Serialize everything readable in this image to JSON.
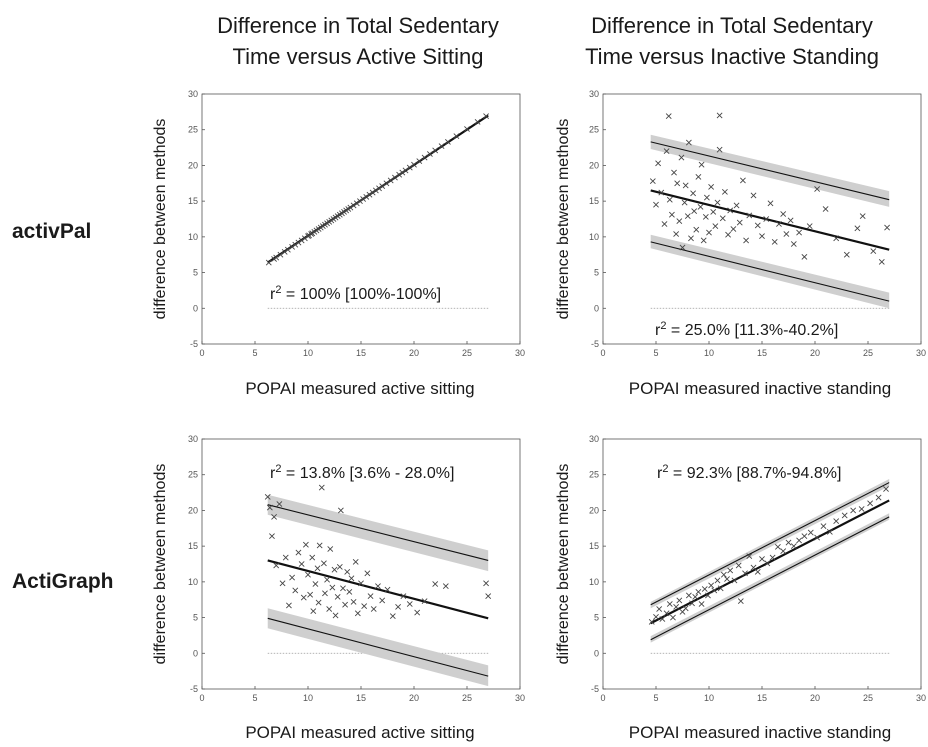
{
  "titles": {
    "left_line1": "Difference in Total Sedentary",
    "left_line2": "Time versus Active Sitting",
    "right_line1": "Difference in Total Sedentary",
    "right_line2": "Time versus Inactive Standing"
  },
  "row_labels": {
    "top": "activPal",
    "bottom": "ActiGraph"
  },
  "colors": {
    "points": "#444444",
    "band": "#cfcfcf",
    "line": "#111111",
    "zero": "#9a9a9a",
    "axis": "#555555"
  },
  "chart_data": [
    {
      "type": "scatter",
      "xlabel": "POPAI measured active sitting",
      "ylabel": "difference between methods",
      "annotation": {
        "base": "r",
        "sup": "2",
        "rest": " = 100% [100%-100%]"
      },
      "xlim": [
        0,
        30
      ],
      "ylim": [
        -5,
        30
      ],
      "xticks": [
        0,
        5,
        10,
        15,
        20,
        25,
        30
      ],
      "yticks": [
        -5,
        0,
        5,
        10,
        15,
        20,
        25,
        30
      ],
      "zero_line": {
        "x": [
          6.2,
          27
        ]
      },
      "bands": [],
      "lines": [
        {
          "x": [
            6.2,
            27
          ],
          "y": [
            6.4,
            27
          ],
          "width": 2.2
        }
      ],
      "points": {
        "x": [
          6.3,
          6.8,
          7.0,
          7.4,
          7.8,
          8.1,
          8.5,
          8.8,
          9.1,
          9.4,
          9.7,
          10.0,
          10.1,
          10.3,
          10.4,
          10.6,
          10.8,
          11.0,
          11.2,
          11.4,
          11.6,
          11.8,
          12.0,
          12.2,
          12.4,
          12.6,
          12.8,
          13.0,
          13.2,
          13.4,
          13.6,
          13.8,
          14.0,
          14.3,
          14.6,
          14.9,
          15.2,
          15.5,
          15.8,
          16.1,
          16.4,
          16.7,
          17.0,
          17.4,
          17.8,
          18.2,
          18.6,
          18.9,
          19.2,
          19.6,
          20.0,
          20.5,
          21.0,
          21.5,
          22.0,
          22.6,
          23.2,
          24.0,
          25.0,
          26.0,
          26.8
        ],
        "y": [
          6.4,
          6.9,
          7.1,
          7.5,
          7.9,
          8.2,
          8.6,
          8.9,
          9.2,
          9.5,
          9.8,
          10.1,
          10.2,
          10.4,
          10.5,
          10.7,
          10.9,
          11.1,
          11.3,
          11.5,
          11.7,
          11.9,
          12.1,
          12.3,
          12.5,
          12.7,
          12.9,
          13.1,
          13.3,
          13.5,
          13.7,
          13.9,
          14.1,
          14.4,
          14.7,
          15.0,
          15.3,
          15.6,
          15.9,
          16.2,
          16.5,
          16.8,
          17.1,
          17.5,
          17.9,
          18.3,
          18.7,
          19.0,
          19.3,
          19.7,
          20.1,
          20.6,
          21.1,
          21.6,
          22.1,
          22.7,
          23.3,
          24.1,
          25.1,
          26.1,
          26.9
        ]
      }
    },
    {
      "type": "scatter",
      "xlabel": "POPAI measured inactive standing",
      "ylabel": "difference between methods",
      "annotation": {
        "base": "r",
        "sup": "2",
        "rest": " = 25.0% [11.3%-40.2%]"
      },
      "xlim": [
        0,
        30
      ],
      "ylim": [
        -5,
        30
      ],
      "xticks": [
        0,
        5,
        10,
        15,
        20,
        25,
        30
      ],
      "yticks": [
        -5,
        0,
        5,
        10,
        15,
        20,
        25,
        30
      ],
      "zero_line": {
        "x": [
          4.5,
          27
        ]
      },
      "bands": [
        {
          "x": [
            4.5,
            27
          ],
          "y_lo": [
            22.3,
            14.2
          ],
          "y_hi": [
            24.3,
            16.4
          ]
        },
        {
          "x": [
            4.5,
            27
          ],
          "y_lo": [
            8.4,
            0.0
          ],
          "y_hi": [
            10.3,
            2.2
          ]
        }
      ],
      "lines": [
        {
          "x": [
            4.5,
            27
          ],
          "y": [
            23.3,
            15.2
          ],
          "width": 1.1
        },
        {
          "x": [
            4.5,
            27
          ],
          "y": [
            16.5,
            8.2
          ],
          "width": 2.2
        },
        {
          "x": [
            4.5,
            27
          ],
          "y": [
            9.3,
            1.0
          ],
          "width": 1.1
        }
      ],
      "points": {
        "x": [
          4.7,
          5.0,
          5.2,
          5.5,
          5.8,
          6.0,
          6.2,
          6.3,
          6.5,
          6.7,
          6.9,
          7.0,
          7.2,
          7.4,
          7.5,
          7.7,
          7.8,
          8.0,
          8.1,
          8.3,
          8.5,
          8.6,
          8.8,
          9.0,
          9.2,
          9.3,
          9.5,
          9.7,
          9.8,
          10.0,
          10.2,
          10.4,
          10.6,
          10.8,
          11.0,
          11.0,
          11.3,
          11.5,
          11.8,
          12.0,
          12.3,
          12.6,
          12.9,
          13.2,
          13.5,
          13.8,
          14.2,
          14.6,
          15.0,
          15.4,
          15.8,
          16.2,
          16.6,
          17.0,
          17.3,
          17.7,
          18.0,
          18.5,
          19.0,
          19.5,
          20.2,
          21.0,
          22.0,
          23.0,
          24.0,
          24.5,
          25.5,
          26.3,
          26.8
        ],
        "y": [
          17.8,
          14.5,
          20.3,
          16.2,
          11.8,
          22.0,
          26.9,
          15.2,
          13.1,
          19.0,
          10.4,
          17.5,
          12.2,
          21.1,
          8.5,
          14.8,
          17.2,
          12.9,
          23.2,
          9.8,
          16.1,
          13.6,
          11.0,
          18.4,
          14.2,
          20.1,
          9.5,
          12.8,
          15.5,
          10.6,
          17.0,
          13.5,
          11.5,
          14.8,
          27.0,
          22.2,
          12.6,
          16.3,
          10.3,
          13.7,
          11.1,
          14.4,
          12.0,
          17.9,
          9.5,
          13.0,
          15.8,
          11.6,
          10.1,
          12.5,
          14.7,
          9.3,
          11.8,
          13.2,
          10.4,
          12.3,
          9.0,
          10.6,
          7.2,
          11.5,
          16.7,
          13.9,
          9.8,
          7.5,
          11.2,
          12.9,
          8.0,
          6.5,
          11.3
        ]
      }
    },
    {
      "type": "scatter",
      "xlabel": "POPAI measured active sitting",
      "ylabel": "difference between methods",
      "annotation": {
        "base": "r",
        "sup": "2",
        "rest": " = 13.8% [3.6% - 28.0%]"
      },
      "xlim": [
        0,
        30
      ],
      "ylim": [
        -5,
        30
      ],
      "xticks": [
        0,
        5,
        10,
        15,
        20,
        25,
        30
      ],
      "yticks": [
        -5,
        0,
        5,
        10,
        15,
        20,
        25,
        30
      ],
      "zero_line": {
        "x": [
          6.2,
          27
        ]
      },
      "bands": [
        {
          "x": [
            6.2,
            27
          ],
          "y_lo": [
            19.4,
            11.5
          ],
          "y_hi": [
            22.2,
            14.4
          ]
        },
        {
          "x": [
            6.2,
            27
          ],
          "y_lo": [
            3.5,
            -4.6
          ],
          "y_hi": [
            6.3,
            -1.7
          ]
        }
      ],
      "lines": [
        {
          "x": [
            6.2,
            27
          ],
          "y": [
            20.8,
            13.0
          ],
          "width": 1.1
        },
        {
          "x": [
            6.2,
            27
          ],
          "y": [
            13.0,
            4.9
          ],
          "width": 2.2
        },
        {
          "x": [
            6.2,
            27
          ],
          "y": [
            4.9,
            -3.2
          ],
          "width": 1.1
        }
      ],
      "points": {
        "x": [
          6.2,
          6.4,
          6.6,
          6.8,
          7.0,
          7.3,
          7.6,
          7.9,
          8.2,
          8.5,
          8.8,
          9.1,
          9.4,
          9.6,
          9.8,
          10.0,
          10.2,
          10.4,
          10.5,
          10.7,
          10.9,
          11.0,
          11.1,
          11.3,
          11.5,
          11.6,
          11.8,
          12.0,
          12.1,
          12.3,
          12.5,
          12.6,
          12.8,
          13.0,
          13.1,
          13.3,
          13.5,
          13.7,
          13.9,
          14.1,
          14.3,
          14.5,
          14.7,
          15.0,
          15.3,
          15.6,
          15.9,
          16.2,
          16.6,
          17.0,
          17.5,
          18.0,
          18.5,
          19.0,
          19.6,
          20.3,
          21.0,
          22.0,
          23.0,
          26.8,
          27.0
        ],
        "y": [
          21.9,
          20.4,
          16.4,
          19.1,
          12.3,
          20.9,
          9.8,
          13.4,
          6.7,
          10.6,
          8.8,
          14.1,
          12.5,
          7.8,
          15.2,
          11.0,
          8.2,
          13.4,
          5.9,
          9.7,
          11.9,
          7.1,
          15.1,
          23.2,
          12.6,
          8.4,
          10.3,
          6.2,
          14.6,
          9.2,
          11.7,
          5.3,
          7.9,
          12.1,
          20.0,
          9.1,
          6.8,
          11.4,
          8.6,
          10.5,
          7.2,
          12.8,
          5.6,
          9.8,
          6.6,
          11.2,
          8.0,
          6.2,
          9.4,
          7.4,
          8.9,
          5.2,
          6.5,
          8.0,
          6.9,
          5.7,
          7.3,
          9.7,
          9.4,
          9.8,
          8.0
        ]
      }
    },
    {
      "type": "scatter",
      "xlabel": "POPAI measured inactive standing",
      "ylabel": "difference between methods",
      "annotation": {
        "base": "r",
        "sup": "2",
        "rest": " = 92.3% [88.7%-94.8%]"
      },
      "xlim": [
        0,
        30
      ],
      "ylim": [
        -5,
        30
      ],
      "xticks": [
        0,
        5,
        10,
        15,
        20,
        25,
        30
      ],
      "yticks": [
        -5,
        0,
        5,
        10,
        15,
        20,
        25,
        30
      ],
      "zero_line": {
        "x": [
          4.5,
          27
        ]
      },
      "bands": [
        {
          "x": [
            4.5,
            27
          ],
          "y_lo": [
            6.3,
            23.4
          ],
          "y_hi": [
            7.2,
            24.4
          ]
        },
        {
          "x": [
            4.5,
            27
          ],
          "y_lo": [
            1.5,
            18.7
          ],
          "y_hi": [
            2.4,
            19.6
          ]
        }
      ],
      "lines": [
        {
          "x": [
            4.5,
            27
          ],
          "y": [
            6.8,
            23.9
          ],
          "width": 1.1
        },
        {
          "x": [
            4.5,
            27
          ],
          "y": [
            4.2,
            21.4
          ],
          "width": 2.2
        },
        {
          "x": [
            4.5,
            27
          ],
          "y": [
            1.9,
            19.1
          ],
          "width": 1.1
        }
      ],
      "points": {
        "x": [
          4.6,
          5.0,
          5.3,
          5.6,
          6.0,
          6.3,
          6.6,
          6.9,
          7.2,
          7.5,
          7.8,
          8.1,
          8.4,
          8.7,
          9.0,
          9.3,
          9.6,
          9.9,
          10.2,
          10.5,
          10.8,
          11.1,
          11.4,
          11.7,
          12.0,
          12.4,
          12.8,
          13.0,
          13.4,
          13.8,
          14.2,
          14.6,
          15.0,
          15.5,
          16.0,
          16.5,
          17.0,
          17.5,
          18.0,
          18.5,
          19.0,
          19.6,
          20.2,
          20.8,
          21.4,
          22.0,
          22.8,
          23.6,
          24.4,
          25.2,
          26.0,
          26.7
        ],
        "y": [
          4.4,
          5.1,
          6.2,
          4.8,
          5.6,
          6.9,
          5.0,
          6.5,
          7.4,
          5.8,
          6.3,
          8.1,
          7.0,
          7.9,
          8.6,
          6.9,
          9.0,
          8.1,
          9.5,
          8.8,
          10.2,
          9.1,
          11.0,
          10.4,
          11.6,
          10.2,
          12.3,
          7.3,
          11.2,
          13.6,
          12.0,
          11.4,
          13.2,
          12.6,
          13.4,
          14.9,
          14.3,
          15.5,
          15.0,
          15.8,
          16.4,
          16.9,
          16.2,
          17.8,
          17.0,
          18.5,
          19.3,
          20.0,
          20.2,
          21.0,
          21.8,
          23.0
        ]
      }
    }
  ]
}
